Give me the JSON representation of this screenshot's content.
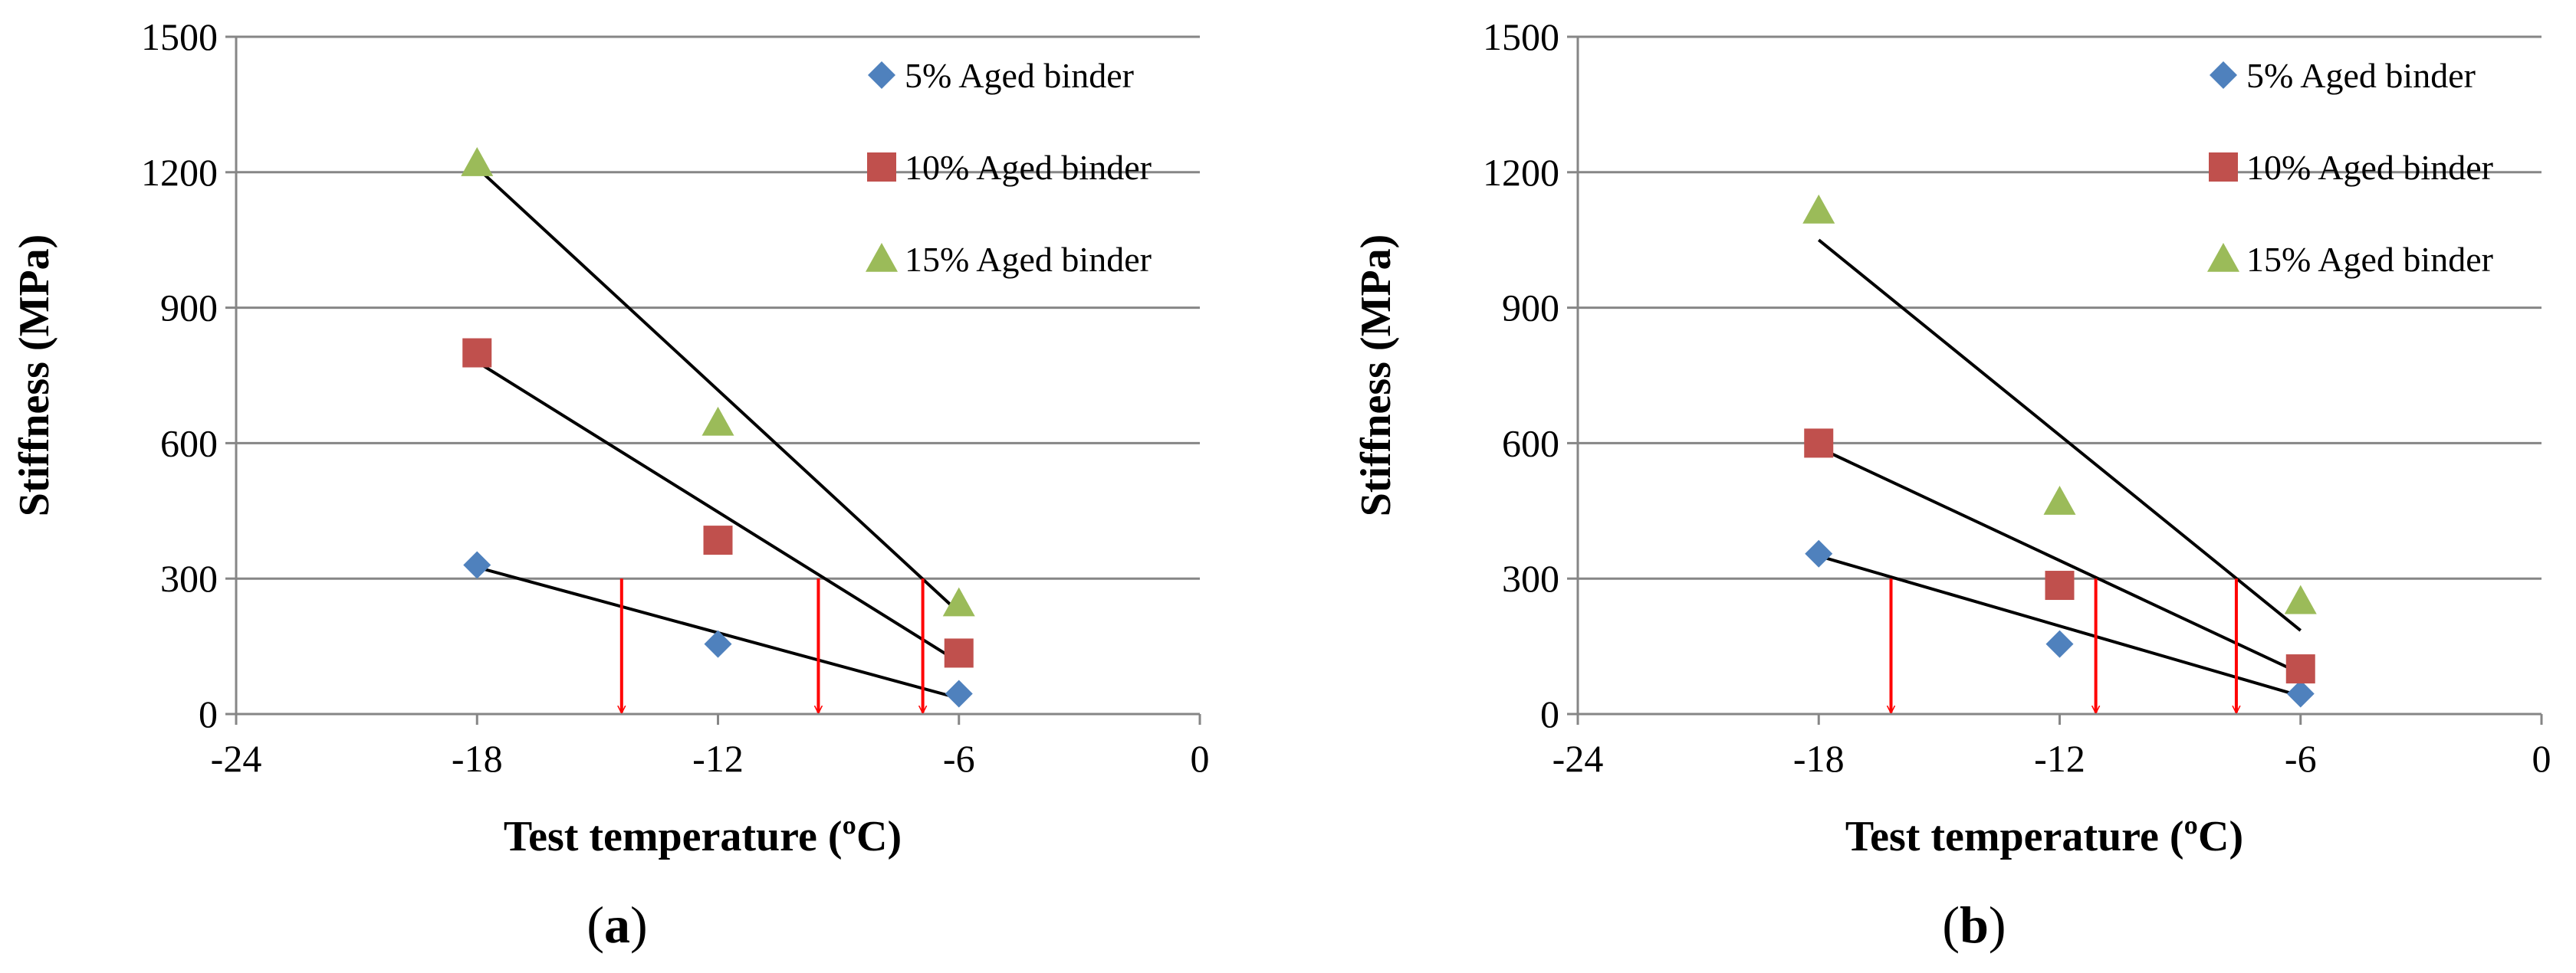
{
  "chart_data": [
    {
      "type": "scatter",
      "panel_label": "(a)",
      "panel_letter": "a",
      "xlabel": "Test temperature (ºC)",
      "ylabel": "Stiffness (MPa)",
      "xlim": [
        -24,
        0
      ],
      "ylim": [
        0,
        1500
      ],
      "x_ticks": [
        -24,
        -18,
        -12,
        -6,
        0
      ],
      "y_ticks": [
        0,
        300,
        600,
        900,
        1200,
        1500
      ],
      "grid": "horizontal",
      "legend_position": "top-right",
      "series": [
        {
          "name": "5% Aged binder",
          "marker": "diamond",
          "color": "#4F81BD",
          "x": [
            -18,
            -12,
            -6
          ],
          "y": [
            330,
            155,
            45
          ],
          "trendline": {
            "x": [
              -18,
              -6
            ],
            "y": [
              325,
              35
            ]
          }
        },
        {
          "name": "10% Aged binder",
          "marker": "square",
          "color": "#C0504D",
          "x": [
            -18,
            -12,
            -6
          ],
          "y": [
            800,
            385,
            135
          ],
          "trendline": {
            "x": [
              -18,
              -6
            ],
            "y": [
              780,
              115
            ]
          }
        },
        {
          "name": "15% Aged binder",
          "marker": "triangle",
          "color": "#9BBB59",
          "x": [
            -18,
            -12,
            -6
          ],
          "y": [
            1220,
            645,
            245
          ],
          "trendline": {
            "x": [
              -18,
              -6
            ],
            "y": [
              1210,
              225
            ]
          }
        }
      ],
      "arrows": {
        "color": "#FF0000",
        "x": [
          -14.4,
          -9.5,
          -6.9
        ],
        "from_y": 300,
        "to_y": 0
      }
    },
    {
      "type": "scatter",
      "panel_label": "(b)",
      "panel_letter": "b",
      "xlabel": "Test temperature (ºC)",
      "ylabel": "Stiffness (MPa)",
      "xlim": [
        -24,
        0
      ],
      "ylim": [
        0,
        1500
      ],
      "x_ticks": [
        -24,
        -18,
        -12,
        -6,
        0
      ],
      "y_ticks": [
        0,
        300,
        600,
        900,
        1200,
        1500
      ],
      "grid": "horizontal",
      "legend_position": "top-right",
      "series": [
        {
          "name": "5% Aged binder",
          "marker": "diamond",
          "color": "#4F81BD",
          "x": [
            -18,
            -12,
            -6
          ],
          "y": [
            355,
            155,
            45
          ],
          "trendline": {
            "x": [
              -18,
              -6
            ],
            "y": [
              350,
              40
            ]
          }
        },
        {
          "name": "10% Aged binder",
          "marker": "square",
          "color": "#C0504D",
          "x": [
            -18,
            -12,
            -6
          ],
          "y": [
            600,
            285,
            100
          ],
          "trendline": {
            "x": [
              -18,
              -6
            ],
            "y": [
              590,
              90
            ]
          }
        },
        {
          "name": "15% Aged binder",
          "marker": "triangle",
          "color": "#9BBB59",
          "x": [
            -18,
            -12,
            -6
          ],
          "y": [
            1115,
            470,
            250
          ],
          "trendline": {
            "x": [
              -18,
              -6
            ],
            "y": [
              1050,
              185
            ]
          }
        }
      ],
      "arrows": {
        "color": "#FF0000",
        "x": [
          -16.2,
          -11.1,
          -7.6
        ],
        "from_y": 300,
        "to_y": 0
      }
    }
  ]
}
